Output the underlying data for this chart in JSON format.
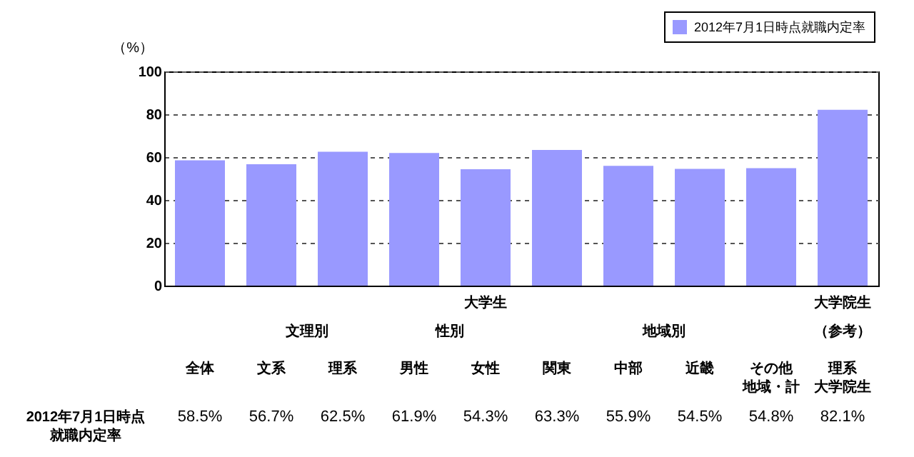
{
  "chart_data": {
    "type": "bar",
    "ylabel": "（%）",
    "categories": [
      "全体",
      "文系",
      "理系",
      "男性",
      "女性",
      "関東",
      "中部",
      "近畿",
      "その他地域・計",
      "理系大学院生"
    ],
    "series": [
      {
        "name": "2012年7月1日時点就職内定率",
        "color": "#9999ff",
        "values": [
          58.5,
          56.7,
          62.5,
          61.9,
          54.3,
          63.3,
          55.9,
          54.5,
          54.8,
          82.1
        ],
        "value_labels": [
          "58.5%",
          "56.7%",
          "62.5%",
          "61.9%",
          "54.3%",
          "63.3%",
          "55.9%",
          "54.5%",
          "54.8%",
          "82.1%"
        ]
      }
    ],
    "annotations": [
      "大学生",
      "大学院生",
      "文理別",
      "性別",
      "地域別",
      "（参考）",
      "2012年7月1日時点就職内定率"
    ],
    "ylim": [
      0,
      100
    ],
    "yticks": [
      0,
      20,
      40,
      60,
      80,
      100
    ],
    "grid": "y",
    "legend": "top right"
  }
}
